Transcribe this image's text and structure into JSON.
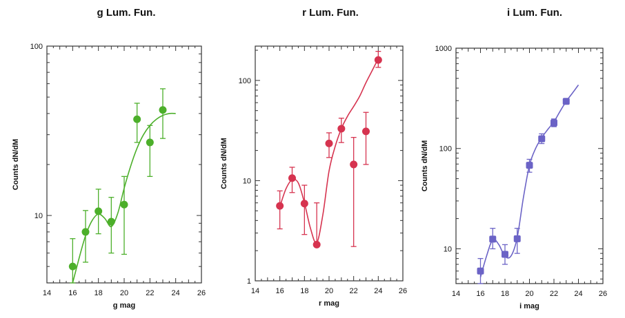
{
  "chart_data": [
    {
      "type": "scatter",
      "title": "g Lum. Fun.",
      "xlabel": "g mag",
      "ylabel": "Counts dN/dM",
      "yscale": "log",
      "xlim": [
        14,
        26
      ],
      "ylim": [
        4,
        100
      ],
      "xticks": [
        14,
        16,
        18,
        20,
        22,
        24,
        26
      ],
      "yticks": [
        10,
        100
      ],
      "color": "#4caf2a",
      "marker": "circle",
      "points": [
        {
          "x": 16,
          "y": 5.0,
          "ylo": 3.7,
          "yhi": 7.3
        },
        {
          "x": 17,
          "y": 8.0,
          "ylo": 5.3,
          "yhi": 10.7
        },
        {
          "x": 18,
          "y": 10.6,
          "ylo": 7.8,
          "yhi": 14.3
        },
        {
          "x": 19,
          "y": 9.2,
          "ylo": 6.0,
          "yhi": 12.8
        },
        {
          "x": 20,
          "y": 11.6,
          "ylo": 5.9,
          "yhi": 17.0
        },
        {
          "x": 21,
          "y": 37.0,
          "ylo": 27.0,
          "yhi": 46.0
        },
        {
          "x": 22,
          "y": 27.0,
          "ylo": 17.0,
          "yhi": 34.0
        },
        {
          "x": 23,
          "y": 42.0,
          "ylo": 28.5,
          "yhi": 56.0
        }
      ],
      "curve": {
        "x": [
          16,
          16.5,
          17,
          17.5,
          18,
          18.5,
          19,
          19.5,
          20,
          20.5,
          21,
          21.5,
          22,
          22.5,
          23,
          23.5,
          24
        ],
        "y": [
          3.7,
          5.6,
          7.6,
          9.3,
          10.2,
          9.6,
          8.6,
          10.3,
          14.5,
          19.5,
          25.0,
          30.0,
          34.0,
          37.0,
          39.0,
          40.0,
          40.0
        ]
      }
    },
    {
      "type": "scatter",
      "title": "r Lum. Fun.",
      "xlabel": "r mag",
      "ylabel": "Counts dN/dM",
      "yscale": "log",
      "xlim": [
        14,
        26
      ],
      "ylim": [
        1,
        220
      ],
      "xticks": [
        14,
        16,
        18,
        20,
        22,
        24,
        26
      ],
      "yticks": [
        1,
        10,
        100
      ],
      "color": "#d6334f",
      "marker": "circle",
      "points": [
        {
          "x": 16,
          "y": 5.6,
          "ylo": 3.3,
          "yhi": 7.9
        },
        {
          "x": 17,
          "y": 10.6,
          "ylo": 7.6,
          "yhi": 13.6
        },
        {
          "x": 18,
          "y": 5.9,
          "ylo": 2.9,
          "yhi": 9.0
        },
        {
          "x": 19,
          "y": 2.3,
          "ylo": 2.3,
          "yhi": 6.0
        },
        {
          "x": 20,
          "y": 23.5,
          "ylo": 17.0,
          "yhi": 30.0
        },
        {
          "x": 21,
          "y": 33.0,
          "ylo": 24.0,
          "yhi": 42.0
        },
        {
          "x": 22,
          "y": 14.5,
          "ylo": 2.2,
          "yhi": 27.0
        },
        {
          "x": 23,
          "y": 31.0,
          "ylo": 14.5,
          "yhi": 48.0
        },
        {
          "x": 24,
          "y": 160.0,
          "ylo": 135.0,
          "yhi": 195.0
        }
      ],
      "curve": {
        "x": [
          16,
          16.5,
          17,
          17.5,
          18,
          18.5,
          19,
          19.5,
          20,
          20.5,
          21,
          21.5,
          22,
          22.5,
          23,
          23.5,
          24
        ],
        "y": [
          5.5,
          8.3,
          10.2,
          9.5,
          6.0,
          3.3,
          2.4,
          4.6,
          12.5,
          22.0,
          33.0,
          44.0,
          55.0,
          70.0,
          95.0,
          125.0,
          165.0
        ]
      }
    },
    {
      "type": "scatter",
      "title": "i Lum. Fun.",
      "xlabel": "i mag",
      "ylabel": "Counts dN/dM",
      "yscale": "log",
      "xlim": [
        14,
        26
      ],
      "ylim": [
        4.5,
        1000
      ],
      "xticks": [
        14,
        16,
        18,
        20,
        22,
        24,
        26
      ],
      "yticks": [
        10,
        100,
        1000
      ],
      "color": "#6b63c6",
      "marker": "square",
      "points": [
        {
          "x": 16,
          "y": 6.0,
          "ylo": 4.5,
          "yhi": 8.0
        },
        {
          "x": 17,
          "y": 12.5,
          "ylo": 10.0,
          "yhi": 16.0
        },
        {
          "x": 18,
          "y": 8.8,
          "ylo": 7.0,
          "yhi": 11.0
        },
        {
          "x": 19,
          "y": 12.6,
          "ylo": 9.0,
          "yhi": 16.0
        },
        {
          "x": 20,
          "y": 68.0,
          "ylo": 58.0,
          "yhi": 78.0
        },
        {
          "x": 21,
          "y": 125.0,
          "ylo": 112.0,
          "yhi": 140.0
        },
        {
          "x": 22,
          "y": 180.0,
          "ylo": 165.0,
          "yhi": 197.0
        },
        {
          "x": 23,
          "y": 295.0,
          "ylo": 280.0,
          "yhi": 310.0
        }
      ],
      "curve": {
        "x": [
          16,
          16.5,
          17,
          17.5,
          18,
          18.5,
          19,
          19.5,
          20,
          20.5,
          21,
          21.5,
          22,
          22.5,
          23,
          23.5,
          24
        ],
        "y": [
          5.2,
          8.5,
          12.3,
          11.0,
          8.4,
          8.5,
          13.0,
          32.0,
          68.0,
          100.0,
          128.0,
          155.0,
          185.0,
          235.0,
          295.0,
          355.0,
          430.0
        ]
      }
    }
  ]
}
